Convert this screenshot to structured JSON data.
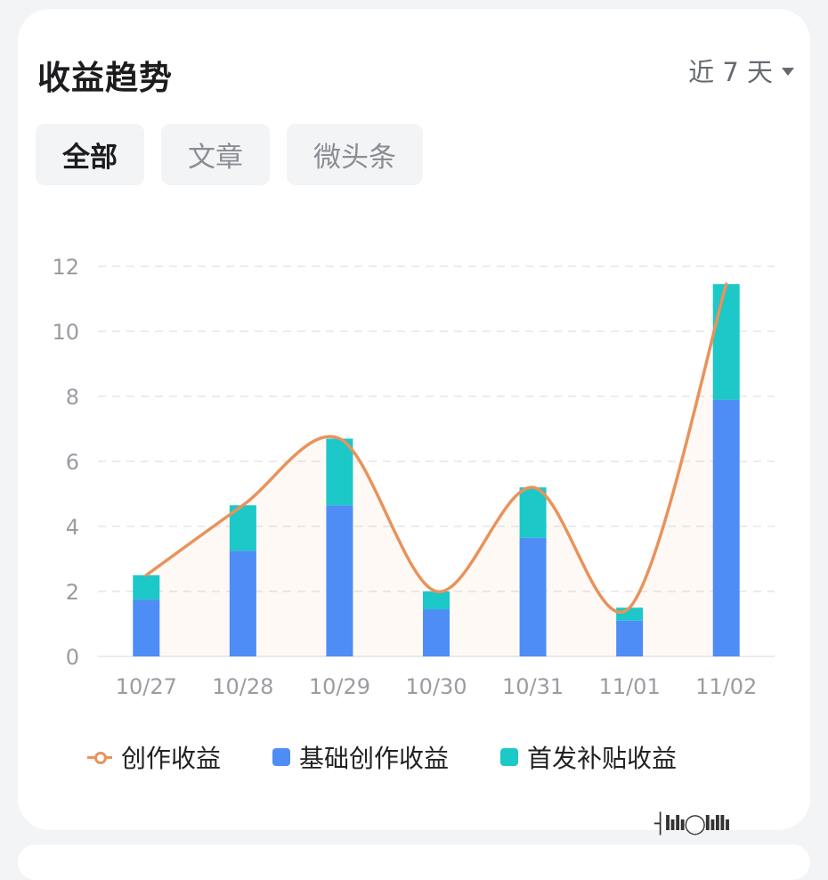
{
  "header": {
    "title": "收益趋势",
    "range_label": "近 7 天"
  },
  "tabs": [
    {
      "label": "全部",
      "active": true
    },
    {
      "label": "文章",
      "active": false
    },
    {
      "label": "微头条",
      "active": false
    }
  ],
  "icons": {
    "range_dropdown": "caret-down-icon"
  },
  "watermark": "┤lılı◯lıllı",
  "colors": {
    "line": "#e8935c",
    "base": "#4e8df6",
    "bonus": "#1cc8c8",
    "grid": "#e3e5e8",
    "tick": "#9a9ca2"
  },
  "chart_data": {
    "type": "bar",
    "stacked": true,
    "categories": [
      "10/27",
      "10/28",
      "10/29",
      "10/30",
      "10/31",
      "11/01",
      "11/02"
    ],
    "ylim": [
      0,
      12
    ],
    "yticks": [
      0,
      2,
      4,
      6,
      8,
      10,
      12
    ],
    "grid": true,
    "legend_position": "bottom",
    "series": [
      {
        "name": "基础创作收益",
        "kind": "bar",
        "values": [
          1.75,
          3.25,
          4.65,
          1.45,
          3.65,
          1.1,
          7.9
        ]
      },
      {
        "name": "首发补贴收益",
        "kind": "bar",
        "values": [
          0.75,
          1.4,
          2.05,
          0.55,
          1.55,
          0.4,
          3.55
        ]
      },
      {
        "name": "创作收益",
        "kind": "line",
        "smooth": true,
        "values": [
          2.5,
          4.65,
          6.7,
          2.0,
          5.2,
          1.5,
          11.45
        ]
      }
    ]
  }
}
